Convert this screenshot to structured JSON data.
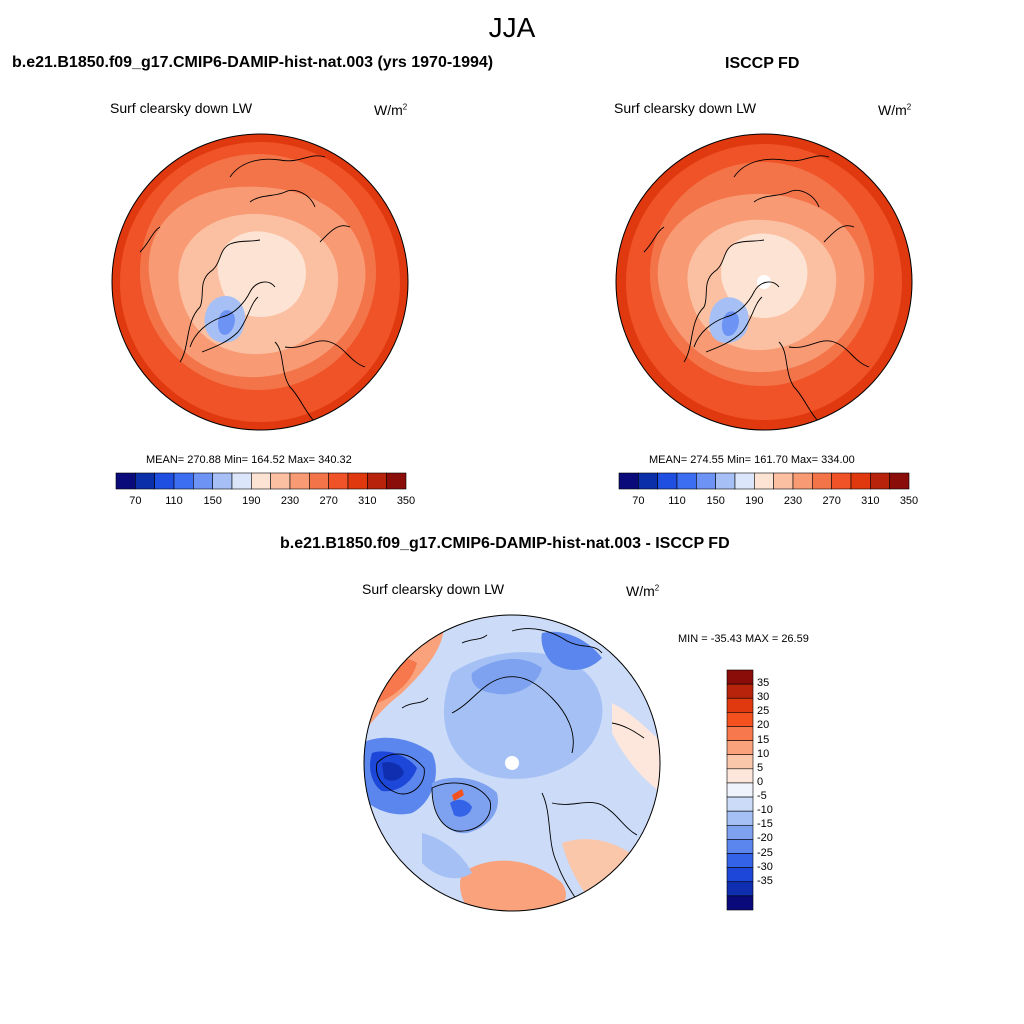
{
  "figure": {
    "title": "JJA",
    "difference_title": "b.e21.B1850.f09_g17.CMIP6-DAMIP-hist-nat.003 - ISCCP FD"
  },
  "panels": [
    {
      "title": "b.e21.B1850.f09_g17.CMIP6-DAMIP-hist-nat.003 (yrs 1970-1994)",
      "variable": "Surf clearsky down LW",
      "units_base": "W/m",
      "units_exp": "2",
      "stats": "MEAN= 270.88  Min= 164.52  Max= 340.32"
    },
    {
      "title": "ISCCP FD",
      "variable": "Surf clearsky down LW",
      "units_base": "W/m",
      "units_exp": "2",
      "stats": "MEAN= 274.55  Min= 161.70  Max= 334.00"
    },
    {
      "title": "b.e21.B1850.f09_g17.CMIP6-DAMIP-hist-nat.003 - ISCCP FD",
      "variable": "Surf clearsky down LW",
      "units_base": "W/m",
      "units_exp": "2",
      "stats": "MIN = -35.43 MAX =  26.59"
    }
  ],
  "colorbar_abs": {
    "colors": [
      "#0a0a7a",
      "#0b2fa8",
      "#1f4fe0",
      "#3b6ef0",
      "#6d93f5",
      "#a6c0f5",
      "#dbe6fb",
      "#fde3d4",
      "#fbc0a2",
      "#f89a74",
      "#f4744a",
      "#ef5327",
      "#e0390f",
      "#b8230b",
      "#8a0d0a"
    ],
    "labels": [
      "70",
      "110",
      "150",
      "190",
      "230",
      "270",
      "310",
      "350"
    ]
  },
  "colorbar_diff": {
    "colors": [
      "#8a0d0a",
      "#b8230b",
      "#e0390f",
      "#f4511f",
      "#f6784c",
      "#f9a27c",
      "#fbc7ab",
      "#fde7dc",
      "#eef3fc",
      "#cbdbf8",
      "#a4c0f4",
      "#7ea2ef",
      "#5b86ee",
      "#3563e8",
      "#1d47d8",
      "#0f2eb0",
      "#0a0a7a"
    ],
    "labels": [
      "35",
      "30",
      "25",
      "20",
      "15",
      "10",
      "5",
      "0",
      "-5",
      "-10",
      "-15",
      "-20",
      "-25",
      "-30",
      "-35"
    ]
  }
}
